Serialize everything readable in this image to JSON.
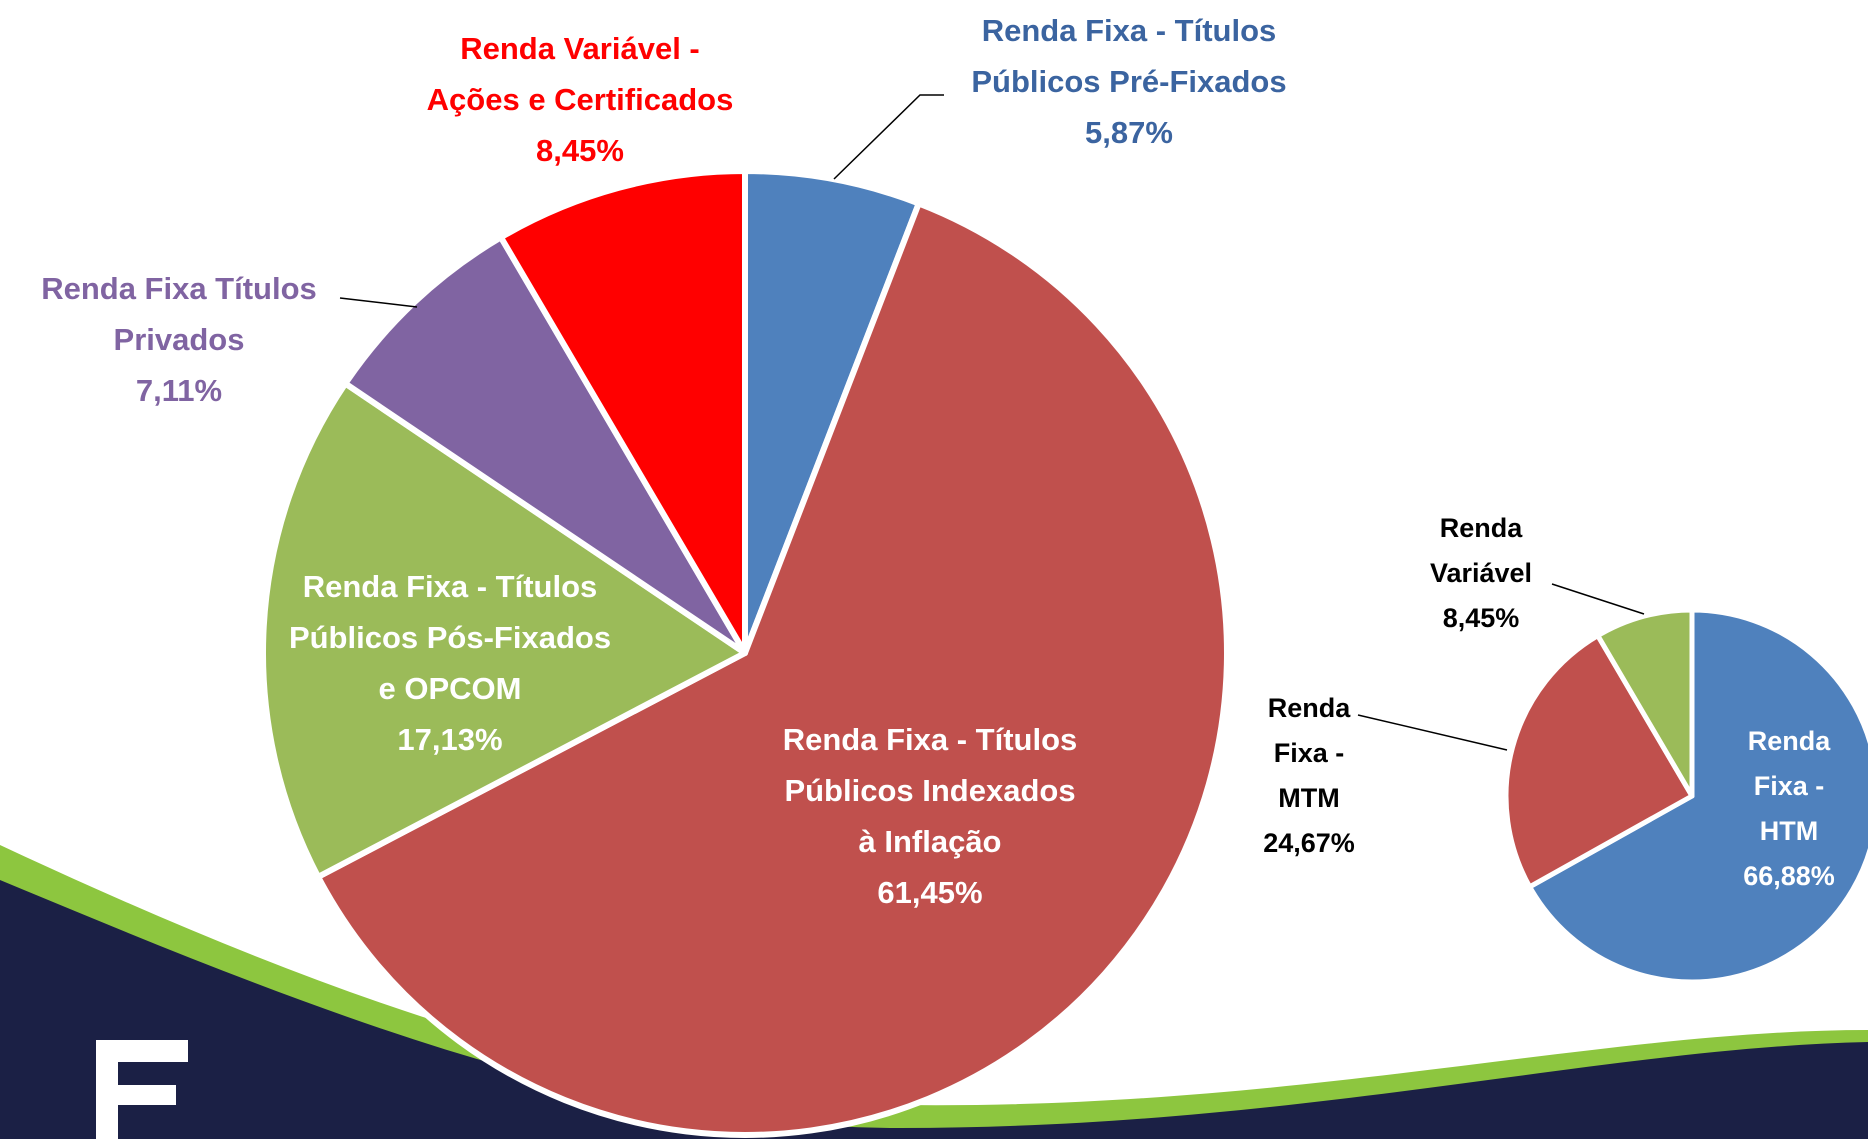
{
  "chart_data": [
    {
      "type": "pie",
      "categories": [
        "Renda Fixa - Títulos\nPúblicos Pré-Fixados",
        "Renda Fixa - Títulos\nPúblicos Indexados\nà Inflação",
        "Renda Fixa - Títulos\nPúblicos Pós-Fixados\ne OPCOM",
        "Renda Fixa Títulos\nPrivados",
        "Renda Variável -\nAções e Certificados"
      ],
      "values": [
        5.87,
        61.45,
        17.13,
        7.11,
        8.45
      ],
      "value_labels": [
        "5,87%",
        "61,45%",
        "17,13%",
        "7,11%",
        "8,45%"
      ],
      "colors": [
        "#4f81bd",
        "#c0504d",
        "#9bbb59",
        "#8064a2",
        "#ff0000"
      ]
    },
    {
      "type": "pie",
      "categories": [
        "Renda\nFixa -\nHTM",
        "Renda\nFixa -\nMTM",
        "Renda\nVariável"
      ],
      "values": [
        66.88,
        24.67,
        8.45
      ],
      "value_labels": [
        "66,88%",
        "24,67%",
        "8,45%"
      ],
      "colors": [
        "#4f81bd",
        "#c0504d",
        "#9bbb59"
      ]
    }
  ]
}
